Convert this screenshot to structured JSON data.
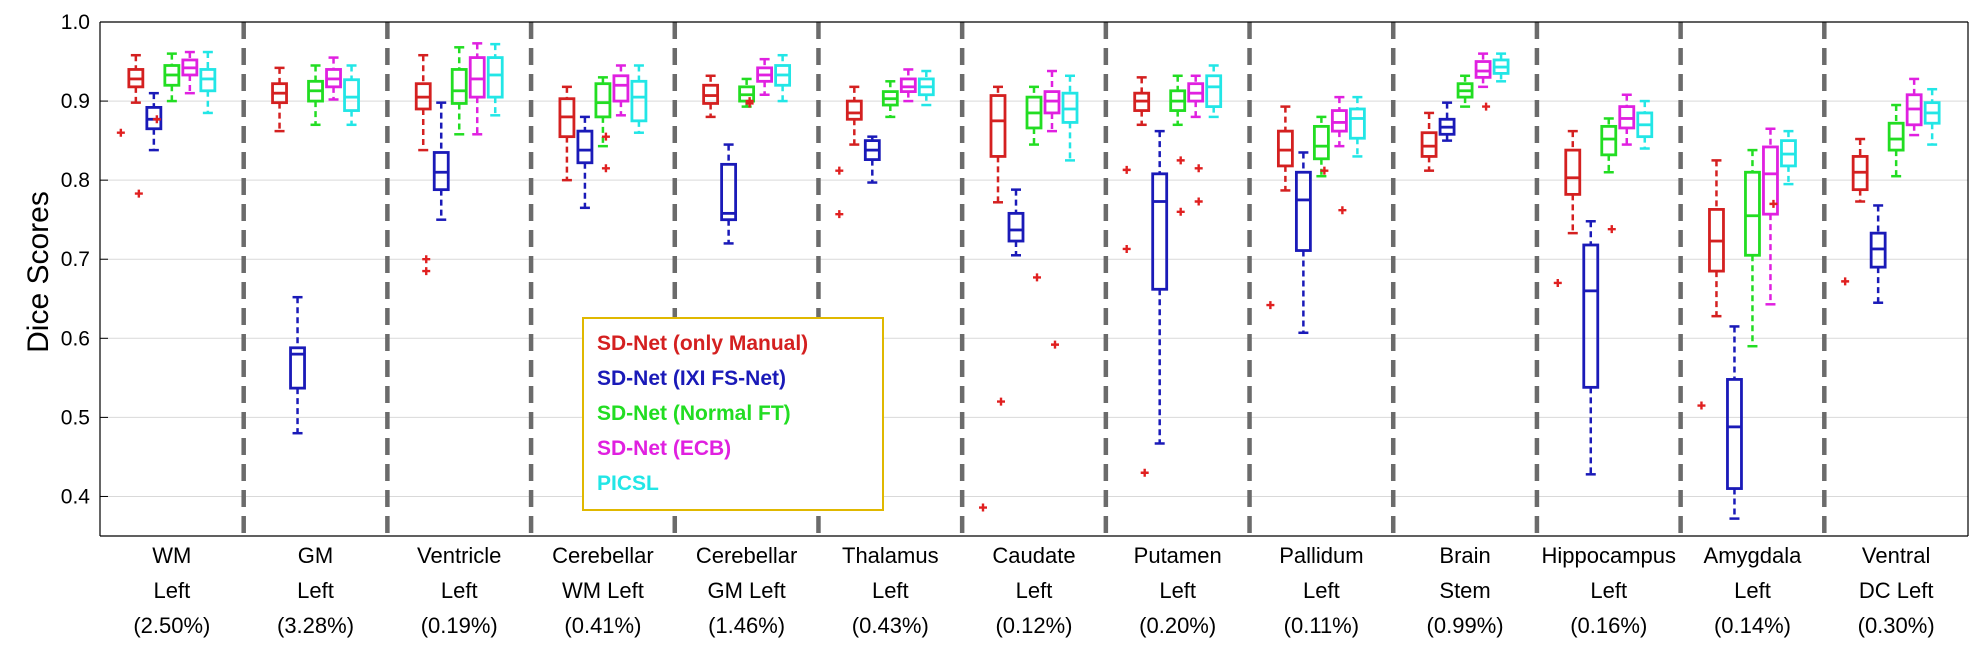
{
  "chart_data": {
    "type": "box",
    "ylabel": "Dice Scores",
    "xlabel": "",
    "title": "",
    "ylim": [
      0.35,
      1.0
    ],
    "yticks": [
      0.4,
      0.5,
      0.6,
      0.7,
      0.8,
      0.9,
      1.0
    ],
    "ytick_labels": [
      "0.4",
      "0.5",
      "0.6",
      "0.7",
      "0.8",
      "0.9",
      "1.0"
    ],
    "grid": "horizontal",
    "legend_position": "inside-center-left",
    "categories": [
      {
        "lines": [
          "WM",
          "Left",
          "(2.50%)"
        ]
      },
      {
        "lines": [
          "GM",
          "Left",
          "(3.28%)"
        ]
      },
      {
        "lines": [
          "Ventricle",
          "Left",
          "(0.19%)"
        ]
      },
      {
        "lines": [
          "Cerebellar",
          "WM Left",
          "(0.41%)"
        ]
      },
      {
        "lines": [
          "Cerebellar",
          "GM Left",
          "(1.46%)"
        ]
      },
      {
        "lines": [
          "Thalamus",
          "Left",
          "(0.43%)"
        ]
      },
      {
        "lines": [
          "Caudate",
          "Left",
          "(0.12%)"
        ]
      },
      {
        "lines": [
          "Putamen",
          "Left",
          "(0.20%)"
        ]
      },
      {
        "lines": [
          "Pallidum",
          "Left",
          "(0.11%)"
        ]
      },
      {
        "lines": [
          "Brain",
          "Stem",
          "(0.99%)"
        ]
      },
      {
        "lines": [
          "Hippocampus",
          "Left",
          "(0.16%)"
        ]
      },
      {
        "lines": [
          "Amygdala",
          "Left",
          "(0.14%)"
        ]
      },
      {
        "lines": [
          "Ventral",
          "DC Left",
          "(0.30%)"
        ]
      }
    ],
    "series": [
      {
        "name": "SD-Net (only Manual)",
        "color": "#d42020",
        "boxes": [
          {
            "q1": 0.918,
            "median": 0.928,
            "q3": 0.94,
            "whisker_low": 0.898,
            "whisker_high": 0.958,
            "outliers": [
              0.86
            ]
          },
          {
            "q1": 0.898,
            "median": 0.91,
            "q3": 0.922,
            "whisker_low": 0.862,
            "whisker_high": 0.942,
            "outliers": []
          },
          {
            "q1": 0.89,
            "median": 0.905,
            "q3": 0.922,
            "whisker_low": 0.838,
            "whisker_high": 0.958,
            "outliers": []
          },
          {
            "q1": 0.855,
            "median": 0.88,
            "q3": 0.903,
            "whisker_low": 0.8,
            "whisker_high": 0.918,
            "outliers": []
          },
          {
            "q1": 0.897,
            "median": 0.907,
            "q3": 0.92,
            "whisker_low": 0.88,
            "whisker_high": 0.932,
            "outliers": []
          },
          {
            "q1": 0.877,
            "median": 0.885,
            "q3": 0.9,
            "whisker_low": 0.845,
            "whisker_high": 0.918,
            "outliers": [
              0.812,
              0.757
            ]
          },
          {
            "q1": 0.83,
            "median": 0.875,
            "q3": 0.907,
            "whisker_low": 0.772,
            "whisker_high": 0.918,
            "outliers": [
              0.386
            ]
          },
          {
            "q1": 0.888,
            "median": 0.9,
            "q3": 0.91,
            "whisker_low": 0.87,
            "whisker_high": 0.93,
            "outliers": [
              0.813,
              0.713
            ]
          },
          {
            "q1": 0.818,
            "median": 0.838,
            "q3": 0.862,
            "whisker_low": 0.787,
            "whisker_high": 0.893,
            "outliers": [
              0.642
            ]
          },
          {
            "q1": 0.83,
            "median": 0.843,
            "q3": 0.86,
            "whisker_low": 0.812,
            "whisker_high": 0.885,
            "outliers": []
          },
          {
            "q1": 0.782,
            "median": 0.803,
            "q3": 0.838,
            "whisker_low": 0.733,
            "whisker_high": 0.862,
            "outliers": [
              0.67
            ]
          },
          {
            "q1": 0.685,
            "median": 0.723,
            "q3": 0.763,
            "whisker_low": 0.628,
            "whisker_high": 0.825,
            "outliers": [
              0.515
            ]
          },
          {
            "q1": 0.788,
            "median": 0.81,
            "q3": 0.83,
            "whisker_low": 0.773,
            "whisker_high": 0.852,
            "outliers": [
              0.672
            ]
          }
        ]
      },
      {
        "name": "SD-Net (IXI FS-Net)",
        "color": "#1a1ab8",
        "boxes": [
          {
            "q1": 0.865,
            "median": 0.877,
            "q3": 0.892,
            "whisker_low": 0.838,
            "whisker_high": 0.91,
            "outliers": [
              0.783
            ]
          },
          {
            "q1": 0.537,
            "median": 0.58,
            "q3": 0.588,
            "whisker_low": 0.48,
            "whisker_high": 0.652,
            "outliers": []
          },
          {
            "q1": 0.788,
            "median": 0.81,
            "q3": 0.835,
            "whisker_low": 0.75,
            "whisker_high": 0.898,
            "outliers": [
              0.7,
              0.685
            ]
          },
          {
            "q1": 0.822,
            "median": 0.838,
            "q3": 0.862,
            "whisker_low": 0.765,
            "whisker_high": 0.88,
            "outliers": []
          },
          {
            "q1": 0.75,
            "median": 0.758,
            "q3": 0.82,
            "whisker_low": 0.72,
            "whisker_high": 0.845,
            "outliers": []
          },
          {
            "q1": 0.826,
            "median": 0.838,
            "q3": 0.85,
            "whisker_low": 0.797,
            "whisker_high": 0.855,
            "outliers": []
          },
          {
            "q1": 0.723,
            "median": 0.737,
            "q3": 0.758,
            "whisker_low": 0.705,
            "whisker_high": 0.788,
            "outliers": [
              0.52
            ]
          },
          {
            "q1": 0.662,
            "median": 0.773,
            "q3": 0.808,
            "whisker_low": 0.467,
            "whisker_high": 0.862,
            "outliers": [
              0.43
            ]
          },
          {
            "q1": 0.711,
            "median": 0.775,
            "q3": 0.81,
            "whisker_low": 0.607,
            "whisker_high": 0.835,
            "outliers": []
          },
          {
            "q1": 0.858,
            "median": 0.867,
            "q3": 0.877,
            "whisker_low": 0.85,
            "whisker_high": 0.898,
            "outliers": []
          },
          {
            "q1": 0.538,
            "median": 0.66,
            "q3": 0.718,
            "whisker_low": 0.428,
            "whisker_high": 0.748,
            "outliers": []
          },
          {
            "q1": 0.41,
            "median": 0.488,
            "q3": 0.548,
            "whisker_low": 0.372,
            "whisker_high": 0.615,
            "outliers": []
          },
          {
            "q1": 0.69,
            "median": 0.713,
            "q3": 0.733,
            "whisker_low": 0.645,
            "whisker_high": 0.768,
            "outliers": []
          }
        ]
      },
      {
        "name": "SD-Net (Normal FT)",
        "color": "#22dd22",
        "boxes": [
          {
            "q1": 0.92,
            "median": 0.933,
            "q3": 0.945,
            "whisker_low": 0.9,
            "whisker_high": 0.96,
            "outliers": [
              0.877
            ]
          },
          {
            "q1": 0.9,
            "median": 0.913,
            "q3": 0.925,
            "whisker_low": 0.87,
            "whisker_high": 0.945,
            "outliers": []
          },
          {
            "q1": 0.897,
            "median": 0.913,
            "q3": 0.94,
            "whisker_low": 0.858,
            "whisker_high": 0.968,
            "outliers": []
          },
          {
            "q1": 0.88,
            "median": 0.898,
            "q3": 0.922,
            "whisker_low": 0.843,
            "whisker_high": 0.93,
            "outliers": []
          },
          {
            "q1": 0.9,
            "median": 0.908,
            "q3": 0.918,
            "whisker_low": 0.893,
            "whisker_high": 0.928,
            "outliers": []
          },
          {
            "q1": 0.895,
            "median": 0.903,
            "q3": 0.912,
            "whisker_low": 0.88,
            "whisker_high": 0.925,
            "outliers": []
          },
          {
            "q1": 0.866,
            "median": 0.885,
            "q3": 0.905,
            "whisker_low": 0.845,
            "whisker_high": 0.918,
            "outliers": []
          },
          {
            "q1": 0.888,
            "median": 0.9,
            "q3": 0.913,
            "whisker_low": 0.87,
            "whisker_high": 0.932,
            "outliers": []
          },
          {
            "q1": 0.827,
            "median": 0.843,
            "q3": 0.868,
            "whisker_low": 0.805,
            "whisker_high": 0.88,
            "outliers": []
          },
          {
            "q1": 0.905,
            "median": 0.913,
            "q3": 0.922,
            "whisker_low": 0.893,
            "whisker_high": 0.932,
            "outliers": []
          },
          {
            "q1": 0.832,
            "median": 0.852,
            "q3": 0.868,
            "whisker_low": 0.81,
            "whisker_high": 0.878,
            "outliers": []
          },
          {
            "q1": 0.705,
            "median": 0.755,
            "q3": 0.81,
            "whisker_low": 0.59,
            "whisker_high": 0.838,
            "outliers": []
          },
          {
            "q1": 0.838,
            "median": 0.852,
            "q3": 0.872,
            "whisker_low": 0.805,
            "whisker_high": 0.895,
            "outliers": []
          }
        ]
      },
      {
        "name": "SD-Net (ECB)",
        "color": "#e020e0",
        "boxes": [
          {
            "q1": 0.933,
            "median": 0.942,
            "q3": 0.952,
            "whisker_low": 0.91,
            "whisker_high": 0.962,
            "outliers": []
          },
          {
            "q1": 0.918,
            "median": 0.928,
            "q3": 0.94,
            "whisker_low": 0.902,
            "whisker_high": 0.955,
            "outliers": []
          },
          {
            "q1": 0.905,
            "median": 0.928,
            "q3": 0.955,
            "whisker_low": 0.858,
            "whisker_high": 0.973,
            "outliers": []
          },
          {
            "q1": 0.9,
            "median": 0.92,
            "q3": 0.932,
            "whisker_low": 0.882,
            "whisker_high": 0.945,
            "outliers": [
              0.855,
              0.815
            ]
          },
          {
            "q1": 0.925,
            "median": 0.933,
            "q3": 0.942,
            "whisker_low": 0.908,
            "whisker_high": 0.953,
            "outliers": [
              0.9,
              0.897
            ]
          },
          {
            "q1": 0.912,
            "median": 0.918,
            "q3": 0.928,
            "whisker_low": 0.9,
            "whisker_high": 0.94,
            "outliers": []
          },
          {
            "q1": 0.885,
            "median": 0.9,
            "q3": 0.912,
            "whisker_low": 0.862,
            "whisker_high": 0.938,
            "outliers": [
              0.677
            ]
          },
          {
            "q1": 0.9,
            "median": 0.91,
            "q3": 0.922,
            "whisker_low": 0.88,
            "whisker_high": 0.932,
            "outliers": [
              0.825,
              0.76
            ]
          },
          {
            "q1": 0.862,
            "median": 0.873,
            "q3": 0.888,
            "whisker_low": 0.843,
            "whisker_high": 0.905,
            "outliers": [
              0.812
            ]
          },
          {
            "q1": 0.93,
            "median": 0.938,
            "q3": 0.95,
            "whisker_low": 0.918,
            "whisker_high": 0.96,
            "outliers": []
          },
          {
            "q1": 0.866,
            "median": 0.878,
            "q3": 0.893,
            "whisker_low": 0.845,
            "whisker_high": 0.908,
            "outliers": [
              0.738
            ]
          },
          {
            "q1": 0.757,
            "median": 0.808,
            "q3": 0.842,
            "whisker_low": 0.643,
            "whisker_high": 0.865,
            "outliers": []
          },
          {
            "q1": 0.87,
            "median": 0.89,
            "q3": 0.908,
            "whisker_low": 0.857,
            "whisker_high": 0.928,
            "outliers": []
          }
        ]
      },
      {
        "name": "PICSL",
        "color": "#22e6e6",
        "boxes": [
          {
            "q1": 0.913,
            "median": 0.928,
            "q3": 0.94,
            "whisker_low": 0.885,
            "whisker_high": 0.962,
            "outliers": []
          },
          {
            "q1": 0.888,
            "median": 0.905,
            "q3": 0.927,
            "whisker_low": 0.87,
            "whisker_high": 0.945,
            "outliers": []
          },
          {
            "q1": 0.905,
            "median": 0.933,
            "q3": 0.955,
            "whisker_low": 0.882,
            "whisker_high": 0.972,
            "outliers": []
          },
          {
            "q1": 0.875,
            "median": 0.905,
            "q3": 0.925,
            "whisker_low": 0.86,
            "whisker_high": 0.945,
            "outliers": []
          },
          {
            "q1": 0.92,
            "median": 0.933,
            "q3": 0.945,
            "whisker_low": 0.9,
            "whisker_high": 0.958,
            "outliers": []
          },
          {
            "q1": 0.908,
            "median": 0.918,
            "q3": 0.928,
            "whisker_low": 0.895,
            "whisker_high": 0.938,
            "outliers": []
          },
          {
            "q1": 0.873,
            "median": 0.89,
            "q3": 0.91,
            "whisker_low": 0.825,
            "whisker_high": 0.932,
            "outliers": [
              0.592
            ]
          },
          {
            "q1": 0.893,
            "median": 0.918,
            "q3": 0.932,
            "whisker_low": 0.88,
            "whisker_high": 0.945,
            "outliers": [
              0.815,
              0.773
            ]
          },
          {
            "q1": 0.853,
            "median": 0.878,
            "q3": 0.89,
            "whisker_low": 0.83,
            "whisker_high": 0.905,
            "outliers": [
              0.762
            ]
          },
          {
            "q1": 0.935,
            "median": 0.943,
            "q3": 0.952,
            "whisker_low": 0.925,
            "whisker_high": 0.96,
            "outliers": [
              0.893
            ]
          },
          {
            "q1": 0.855,
            "median": 0.87,
            "q3": 0.885,
            "whisker_low": 0.84,
            "whisker_high": 0.9,
            "outliers": []
          },
          {
            "q1": 0.818,
            "median": 0.833,
            "q3": 0.85,
            "whisker_low": 0.795,
            "whisker_high": 0.862,
            "outliers": [
              0.77
            ]
          },
          {
            "q1": 0.872,
            "median": 0.885,
            "q3": 0.898,
            "whisker_low": 0.845,
            "whisker_high": 0.915,
            "outliers": []
          }
        ]
      }
    ]
  }
}
